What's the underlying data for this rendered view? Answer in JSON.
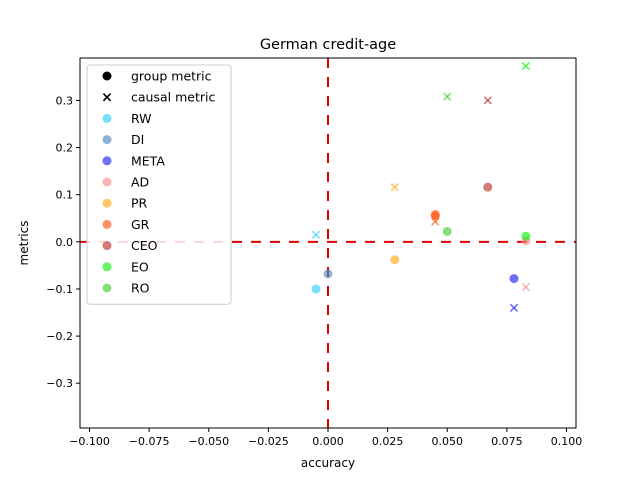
{
  "chart_data": {
    "type": "scatter",
    "title": "German credit-age",
    "xlabel": "accuracy",
    "ylabel": "metrics",
    "xlim": [
      -0.104,
      0.104
    ],
    "ylim": [
      -0.395,
      0.39
    ],
    "xticks": [
      -0.1,
      -0.075,
      -0.05,
      -0.025,
      0.0,
      0.025,
      0.05,
      0.075,
      0.1
    ],
    "xtick_labels": [
      "−0.100",
      "−0.075",
      "−0.050",
      "−0.025",
      "0.000",
      "0.025",
      "0.050",
      "0.075",
      "0.100"
    ],
    "yticks": [
      -0.3,
      -0.2,
      -0.1,
      0.0,
      0.1,
      0.2,
      0.3
    ],
    "ytick_labels": [
      "−0.3",
      "−0.2",
      "−0.1",
      "0.0",
      "0.1",
      "0.2",
      "0.3"
    ],
    "grid": false,
    "legend_position": "upper-left",
    "marker_legend": [
      {
        "label": "group metric",
        "marker": "circle"
      },
      {
        "label": "causal metric",
        "marker": "x"
      }
    ],
    "reference_lines": [
      {
        "orientation": "horizontal",
        "value": 0.0,
        "style": "dashed",
        "color": "#dd0000"
      },
      {
        "orientation": "vertical",
        "value": 0.0,
        "style": "dashed",
        "color": "#dd0000"
      }
    ],
    "series": [
      {
        "name": "RW",
        "color": "#33ccff",
        "group": [
          [
            -0.005,
            -0.1
          ]
        ],
        "causal": [
          [
            -0.005,
            0.015
          ]
        ]
      },
      {
        "name": "DI",
        "color": "#5588bb",
        "group": [
          [
            0.0,
            -0.068
          ]
        ],
        "causal": []
      },
      {
        "name": "META",
        "color": "#2222ee",
        "group": [
          [
            0.078,
            -0.078
          ]
        ],
        "causal": [
          [
            0.078,
            -0.14
          ]
        ]
      },
      {
        "name": "AD",
        "color": "#ff8888",
        "group": [
          [
            0.083,
            0.002
          ]
        ],
        "causal": [
          [
            0.083,
            -0.096
          ]
        ]
      },
      {
        "name": "PR",
        "color": "#ffaa11",
        "group": [
          [
            0.028,
            -0.038
          ]
        ],
        "causal": [
          [
            0.028,
            0.116
          ]
        ]
      },
      {
        "name": "GR",
        "color": "#ff5511",
        "group": [
          [
            0.045,
            0.058
          ],
          [
            0.045,
            0.055
          ]
        ],
        "causal": [
          [
            0.045,
            0.043
          ]
        ]
      },
      {
        "name": "CEO",
        "color": "#bb3333",
        "group": [
          [
            0.067,
            0.116
          ]
        ],
        "causal": [
          [
            0.067,
            0.3
          ]
        ]
      },
      {
        "name": "EO",
        "color": "#11ee11",
        "group": [
          [
            0.083,
            0.012
          ]
        ],
        "causal": [
          [
            0.083,
            0.373
          ]
        ]
      },
      {
        "name": "RO",
        "color": "#44cc33",
        "group": [
          [
            0.05,
            0.022
          ]
        ],
        "causal": [
          [
            0.05,
            0.308
          ]
        ]
      }
    ]
  }
}
